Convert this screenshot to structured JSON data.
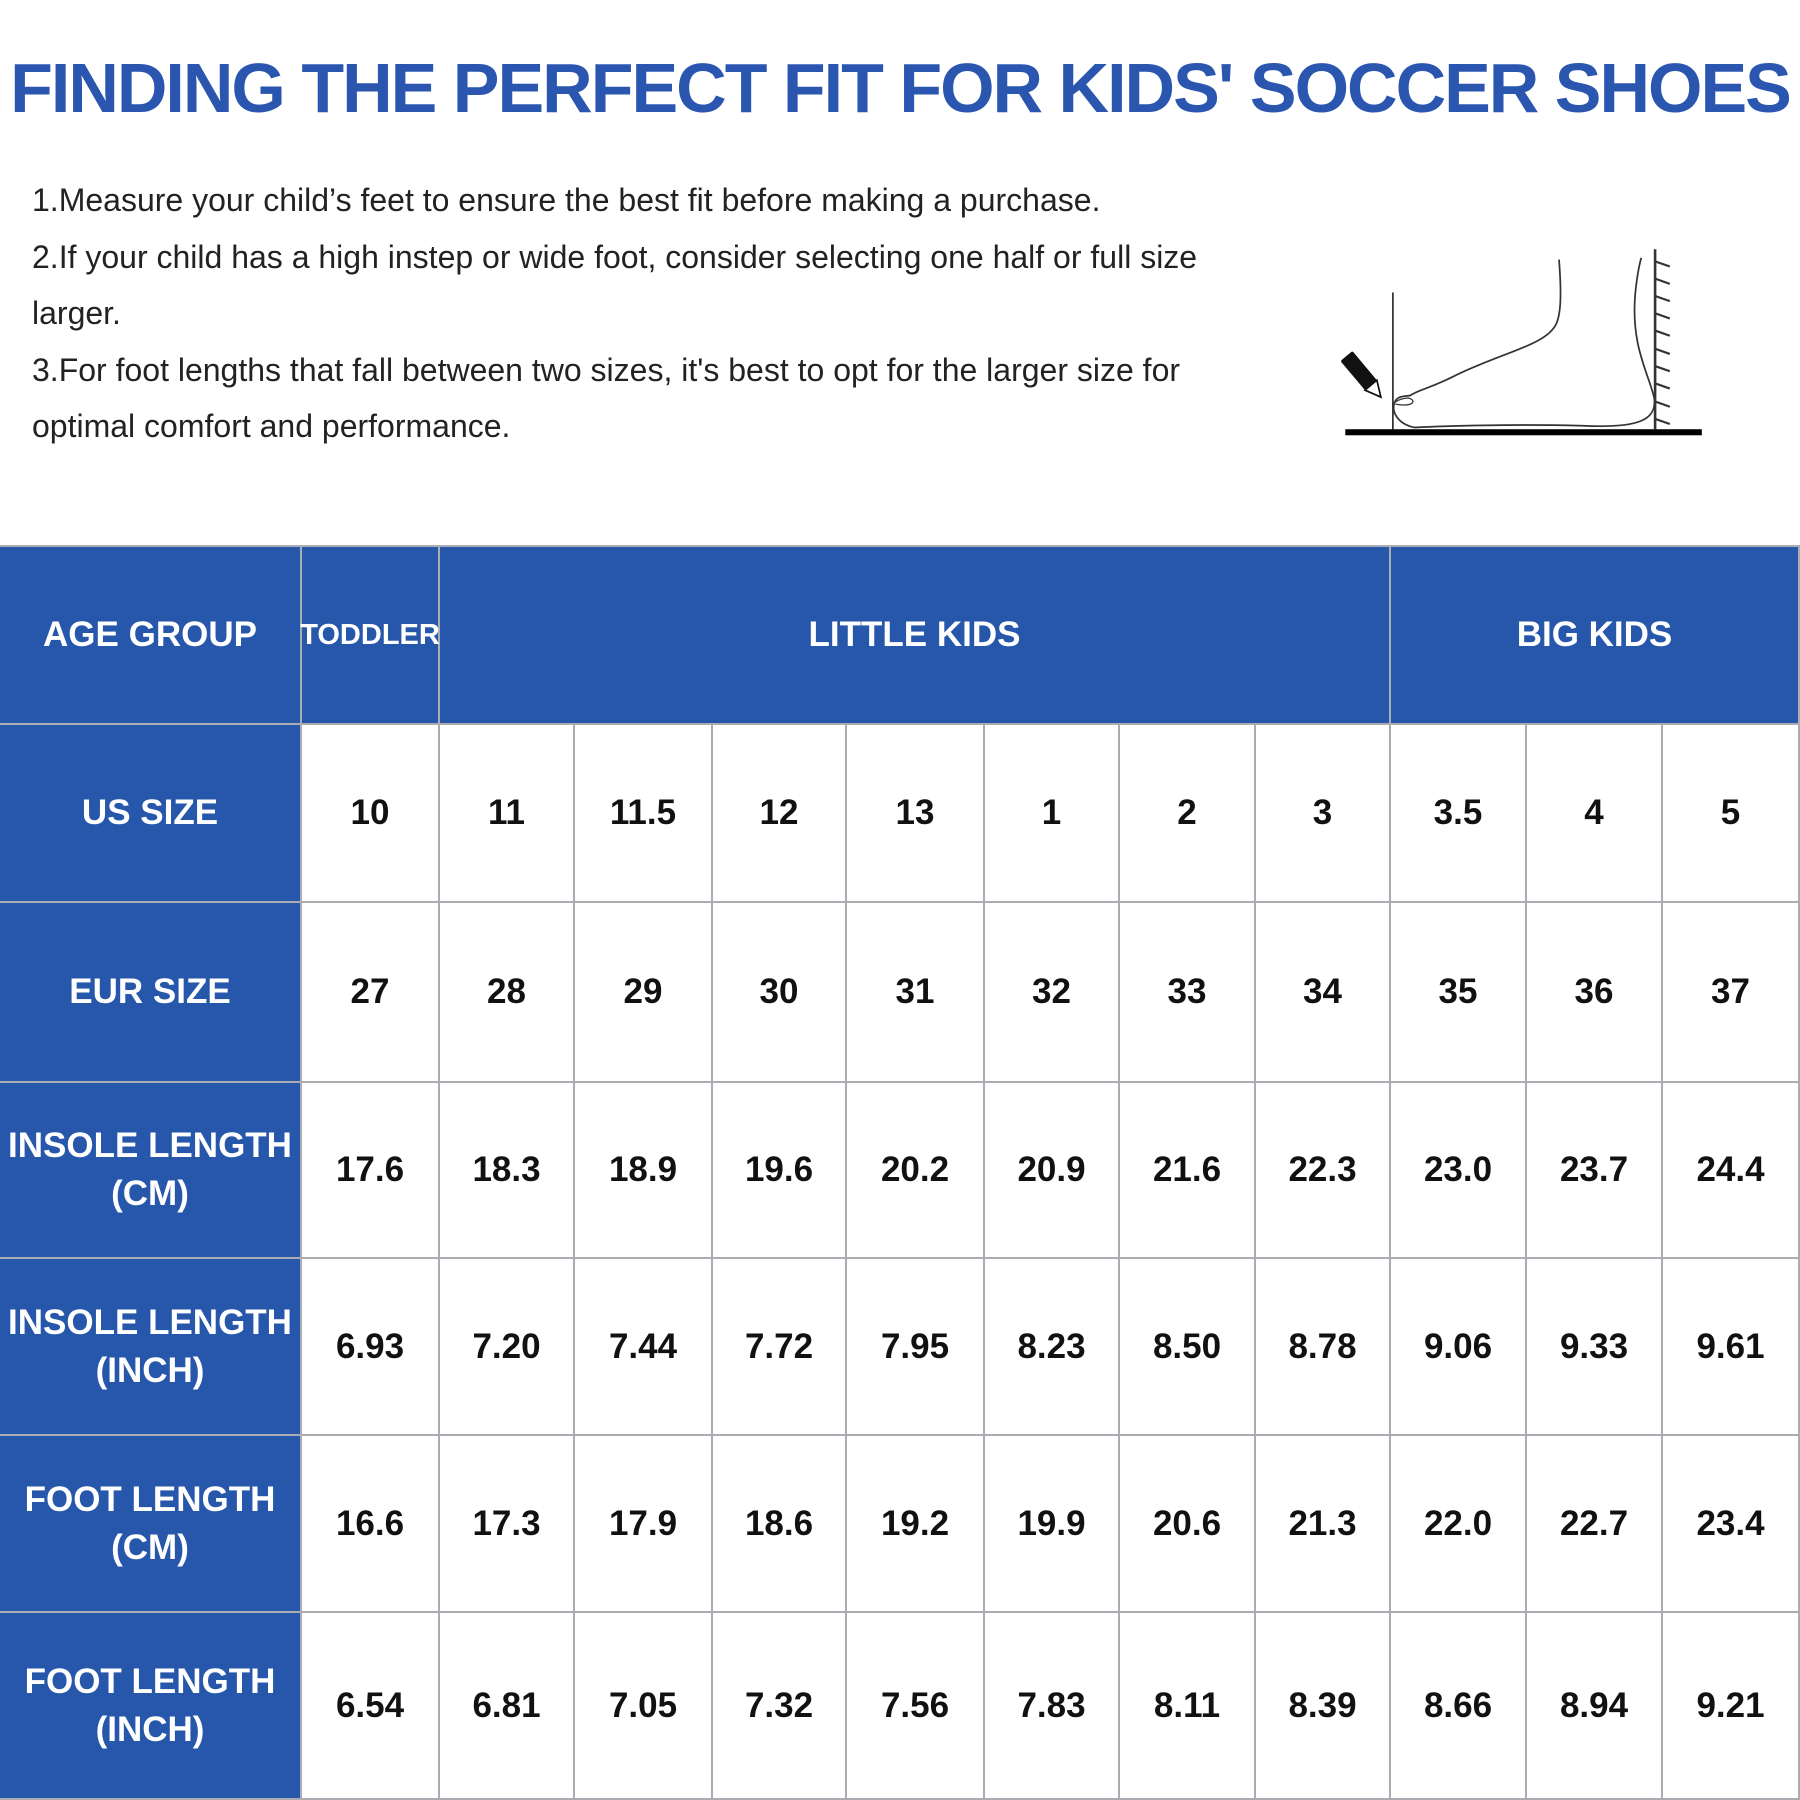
{
  "title": "FINDING THE PERFECT FIT FOR KIDS' SOCCER SHOES",
  "tips": [
    "1.Measure your child’s feet to ensure the best fit before making a purchase.",
    "2.If your child has a high instep or wide foot, consider selecting one half or full size larger.",
    "3.For foot lengths that fall between two sizes, it's best to opt for the larger size for optimal comfort and performance."
  ],
  "illustration": "foot-measurement-icon",
  "colors": {
    "brand_blue": "#2757ab",
    "title_blue": "#2a56b0",
    "grid": "#a9acb1"
  },
  "table": {
    "age_group_label": "AGE GROUP",
    "groups": [
      {
        "label": "TODDLER",
        "span": 1
      },
      {
        "label": "LITTLE KIDS",
        "span": 7
      },
      {
        "label": "BIG KIDS",
        "span": 3
      }
    ],
    "rows": [
      {
        "label": "US SIZE",
        "values": [
          "10",
          "11",
          "11.5",
          "12",
          "13",
          "1",
          "2",
          "3",
          "3.5",
          "4",
          "5"
        ]
      },
      {
        "label": "EUR SIZE",
        "values": [
          "27",
          "28",
          "29",
          "30",
          "31",
          "32",
          "33",
          "34",
          "35",
          "36",
          "37"
        ]
      },
      {
        "label": "INSOLE LENGTH (CM)",
        "values": [
          "17.6",
          "18.3",
          "18.9",
          "19.6",
          "20.2",
          "20.9",
          "21.6",
          "22.3",
          "23.0",
          "23.7",
          "24.4"
        ]
      },
      {
        "label": "INSOLE LENGTH (INCH)",
        "values": [
          "6.93",
          "7.20",
          "7.44",
          "7.72",
          "7.95",
          "8.23",
          "8.50",
          "8.78",
          "9.06",
          "9.33",
          "9.61"
        ]
      },
      {
        "label": "FOOT LENGTH (CM)",
        "values": [
          "16.6",
          "17.3",
          "17.9",
          "18.6",
          "19.2",
          "19.9",
          "20.6",
          "21.3",
          "22.0",
          "22.7",
          "23.4"
        ]
      },
      {
        "label": "FOOT LENGTH (INCH)",
        "values": [
          "6.54",
          "6.81",
          "7.05",
          "7.32",
          "7.56",
          "7.83",
          "8.11",
          "8.39",
          "8.66",
          "8.94",
          "9.21"
        ]
      }
    ]
  }
}
